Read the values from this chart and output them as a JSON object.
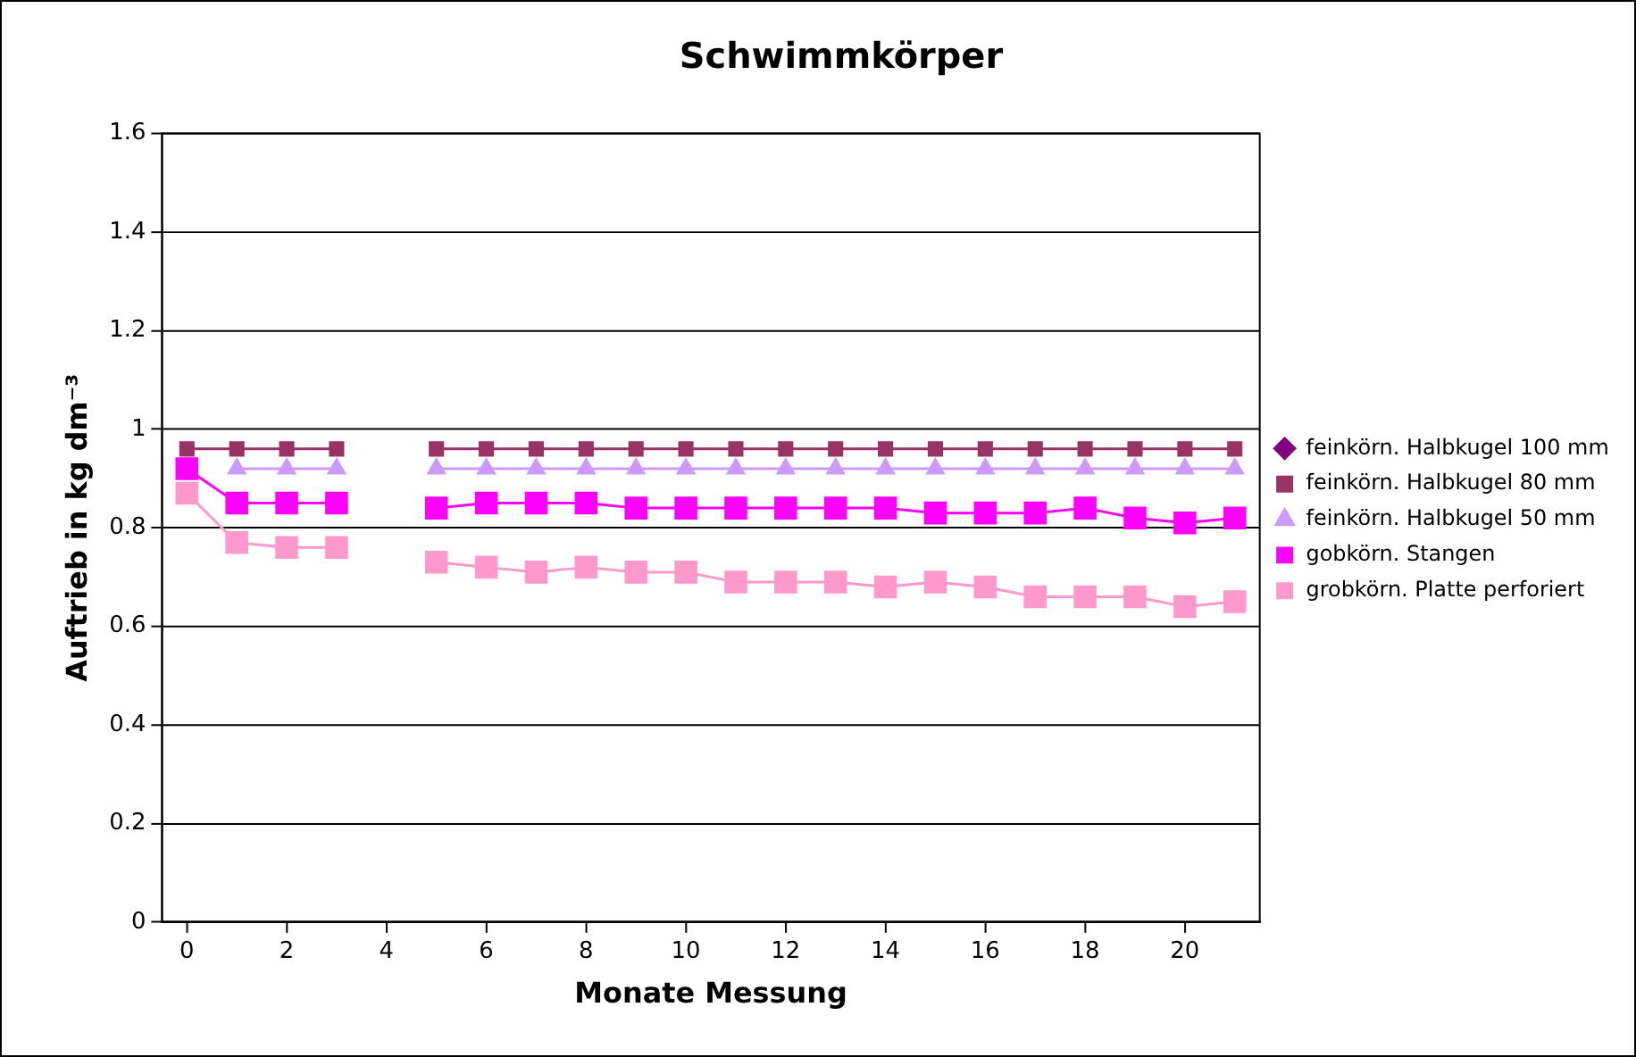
{
  "chart_data": {
    "type": "line",
    "title": "Schwimmkörper",
    "xlabel": "Monate Messung",
    "ylabel": "Auftrieb in kg dm⁻³",
    "x": [
      0,
      1,
      2,
      3,
      4,
      5,
      6,
      7,
      8,
      9,
      10,
      11,
      12,
      13,
      14,
      15,
      16,
      17,
      18,
      19,
      20,
      21
    ],
    "xlim": [
      -0.5,
      21.5
    ],
    "xticks": [
      0,
      2,
      4,
      6,
      8,
      10,
      12,
      14,
      16,
      18,
      20
    ],
    "ylim": [
      0,
      1.6
    ],
    "yticks": [
      0,
      0.2,
      0.4,
      0.6,
      0.8,
      1,
      1.2,
      1.4,
      1.6
    ],
    "grid": "y",
    "legend": "right",
    "series": [
      {
        "name": "feinkörn. Halbkugel 100 mm",
        "color": "#800080",
        "marker": "diamond",
        "values": [
          null,
          null,
          null,
          null,
          null,
          null,
          null,
          null,
          null,
          null,
          null,
          null,
          null,
          null,
          null,
          null,
          null,
          null,
          null,
          null,
          null,
          null
        ]
      },
      {
        "name": "feinkörn. Halbkugel 80 mm",
        "color": "#993366",
        "marker": "square",
        "values": [
          0.96,
          0.96,
          0.96,
          0.96,
          null,
          0.96,
          0.96,
          0.96,
          0.96,
          0.96,
          0.96,
          0.96,
          0.96,
          0.96,
          0.96,
          0.96,
          0.96,
          0.96,
          0.96,
          0.96,
          0.96,
          0.96
        ]
      },
      {
        "name": "feinkörn. Halbkugel 50 mm",
        "color": "#cc99ff",
        "marker": "triangle",
        "values": [
          null,
          0.92,
          0.92,
          0.92,
          null,
          0.92,
          0.92,
          0.92,
          0.92,
          0.92,
          0.92,
          0.92,
          0.92,
          0.92,
          0.92,
          0.92,
          0.92,
          0.92,
          0.92,
          0.92,
          0.92,
          0.92
        ]
      },
      {
        "name": "gobkörn. Stangen",
        "color": "#ff00ff",
        "marker": "square",
        "values": [
          0.92,
          0.85,
          0.85,
          0.85,
          null,
          0.84,
          0.85,
          0.85,
          0.85,
          0.84,
          0.84,
          0.84,
          0.84,
          0.84,
          0.84,
          0.83,
          0.83,
          0.83,
          0.84,
          0.82,
          0.81,
          0.82
        ]
      },
      {
        "name": "grobkörn. Platte perforiert",
        "color": "#ff99cc",
        "marker": "square",
        "values": [
          0.87,
          0.77,
          0.76,
          0.76,
          null,
          0.73,
          0.72,
          0.71,
          0.72,
          0.71,
          0.71,
          0.69,
          0.69,
          0.69,
          0.68,
          0.69,
          0.68,
          0.66,
          0.66,
          0.66,
          0.64,
          0.65
        ]
      }
    ]
  }
}
